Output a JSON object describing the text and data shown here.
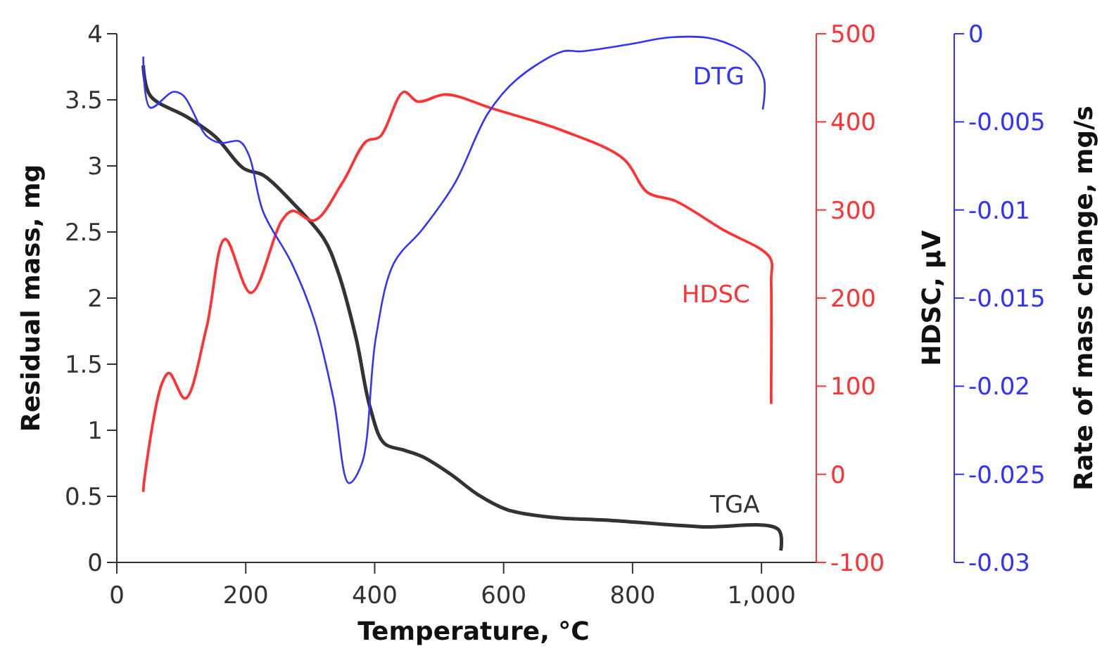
{
  "chart_data": {
    "type": "line",
    "xlabel": "Temperature, °C",
    "ylabel": "Residual mass, mg",
    "y2label": "HDSC, µV",
    "y3label": "Rate of mass change, mg/s",
    "xlim": [
      0,
      1085
    ],
    "xticks": [
      0,
      200,
      400,
      600,
      800,
      {
        "value": 1000,
        "label": "1,000"
      }
    ],
    "ylim": [
      0,
      4
    ],
    "yticks": [
      0,
      0.5,
      1,
      1.5,
      2,
      2.5,
      3,
      3.5,
      4
    ],
    "y2lim": [
      -100,
      500
    ],
    "y2ticks": [
      -100,
      0,
      100,
      200,
      300,
      400,
      500
    ],
    "y3lim": [
      -0.03,
      0
    ],
    "y3ticks": [
      -0.03,
      -0.025,
      -0.02,
      -0.015,
      -0.01,
      -0.005,
      0
    ],
    "grid": false,
    "marker": "none",
    "line_style": "solid",
    "series": [
      {
        "name": "TGA",
        "color": "#333333",
        "x": [
          41,
          52,
          109,
          153,
          197,
          227,
          271,
          321,
          343,
          371,
          393,
          415,
          445,
          474,
          517,
          561,
          605,
          677,
          758,
          904,
          1026,
          1030
        ],
        "values": [
          3.76,
          3.53,
          3.37,
          3.22,
          2.98,
          2.93,
          2.73,
          2.45,
          2.2,
          1.7,
          1.17,
          0.9,
          0.85,
          0.8,
          0.67,
          0.51,
          0.4,
          0.34,
          0.32,
          0.27,
          0.25,
          0.09
        ]
      },
      {
        "name": "HDSC",
        "color": "#ff3333",
        "axis": "y2",
        "x": [
          41,
          43,
          70,
          81,
          106,
          139,
          168,
          208,
          256,
          273,
          306,
          350,
          387,
          408,
          445,
          467,
          511,
          583,
          692,
          786,
          823,
          867,
          939,
          1013,
          1015,
          1015,
          1015
        ],
        "values": [
          -20,
          -4,
          103,
          115,
          86,
          166,
          267,
          206,
          288,
          299,
          288,
          331,
          378,
          383,
          434,
          423,
          431,
          415,
          390,
          358,
          320,
          310,
          278,
          246,
          219,
          91,
          80
        ]
      },
      {
        "name": "DTG",
        "color": "#3333ff",
        "axis": "y3",
        "x": [
          41,
          52,
          87,
          103,
          139,
          161,
          190,
          205,
          227,
          271,
          306,
          336,
          360,
          380,
          402,
          430,
          474,
          524,
          576,
          620,
          692,
          720,
          795,
          860,
          926,
          983,
          1004,
          1002
        ],
        "values": [
          -0.0013,
          -0.0042,
          -0.0033,
          -0.0035,
          -0.0058,
          -0.0062,
          -0.0061,
          -0.0069,
          -0.0101,
          -0.013,
          -0.0162,
          -0.0207,
          -0.0255,
          -0.0244,
          -0.0172,
          -0.013,
          -0.0111,
          -0.0085,
          -0.0045,
          -0.0026,
          -0.001,
          -0.001,
          -0.0006,
          -0.0002,
          -0.0003,
          -0.0013,
          -0.0026,
          -0.0043
        ]
      }
    ]
  }
}
